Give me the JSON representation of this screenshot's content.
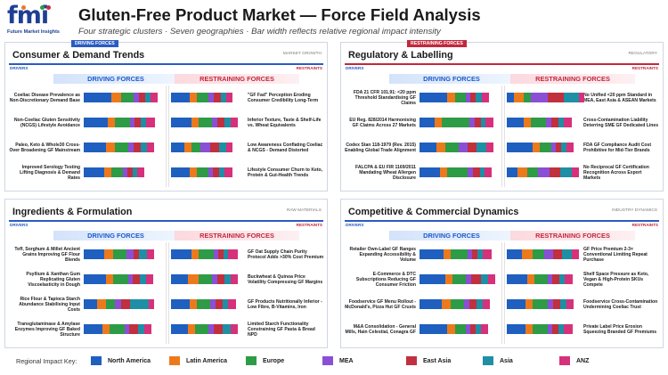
{
  "logo": {
    "mark": "fmi",
    "sub": "Future Market Insights"
  },
  "title": "Gluten-Free Product Market — Force Field Analysis",
  "subtitle": "Four strategic clusters · Seven geographies · Bar width reflects relative regional impact intensity",
  "colors": {
    "North America": "#1f5fbf",
    "Latin America": "#ec7a1c",
    "Europe": "#2e9b46",
    "MEA": "#8b4fd6",
    "East Asia": "#c0303f",
    "Asia": "#1f8fa6",
    "ANZ": "#d6317a",
    "driving_accent": "#2a5bc2",
    "restraining_accent": "#c2283c"
  },
  "legend": {
    "title": "Regional Impact Key:",
    "items": [
      "North America",
      "Latin America",
      "Europe",
      "MEA",
      "East Asia",
      "Asia",
      "ANZ"
    ]
  },
  "panels": [
    {
      "title": "Consumer & Demand Trends",
      "tag": "DRIVING FORCES",
      "caption": "MARKET GROWTH",
      "drivers_label": "DRIVERS",
      "restraints_label": "RESTRAINTS",
      "driving_header": "DRIVING FORCES",
      "restraining_header": "RESTRAINING FORCES"
    },
    {
      "title": "Regulatory & Labelling",
      "tag": "RESTRAINING FORCES",
      "caption": "REGULATORY",
      "drivers_label": "DRIVERS",
      "restraints_label": "RESTRAINTS",
      "driving_header": "DRIVING FORCES",
      "restraining_header": "RESTRAINING FORCES"
    },
    {
      "title": "Ingredients & Formulation",
      "tag": "",
      "caption": "RAW MATERIALS",
      "drivers_label": "DRIVERS",
      "restraints_label": "RESTRAINTS",
      "driving_header": "DRIVING FORCES",
      "restraining_header": "RESTRAINING FORCES"
    },
    {
      "title": "Competitive & Commercial Dynamics",
      "tag": "",
      "caption": "INDUSTRY DYNAMICS",
      "drivers_label": "DRIVERS",
      "restraints_label": "RESTRAINTS",
      "driving_header": "DRIVING FORCES",
      "restraining_header": "RESTRAINING FORCES"
    }
  ],
  "chart_data": {
    "type": "bar",
    "stacked": true,
    "series_order": [
      "North America",
      "Latin America",
      "Europe",
      "MEA",
      "East Asia",
      "Asia",
      "ANZ"
    ],
    "panels": [
      {
        "name": "Consumer & Demand Trends",
        "driving": [
          {
            "label": "Coeliac Disease Prevalence as Non-Discretionary Demand Base",
            "values": [
              30,
              10,
              14,
              6,
              6,
              6,
              8
            ]
          },
          {
            "label": "Non-Coeliac Gluten Sensitivity (NCGS) Lifestyle Avoidance",
            "values": [
              26,
              8,
              16,
              5,
              7,
              5,
              10
            ]
          },
          {
            "label": "Paleo, Keto & Whole30 Cross-Over Broadening GF Mainstream",
            "values": [
              24,
              10,
              14,
              6,
              8,
              6,
              8
            ]
          },
          {
            "label": "Improved Serology Testing Lifting Diagnosis & Demand Rates",
            "values": [
              22,
              8,
              12,
              5,
              6,
              5,
              7
            ]
          }
        ],
        "restraining": [
          {
            "label": "\"GF Fad\" Perception Eroding Consumer Credibility Long-Term",
            "values": [
              20,
              8,
              12,
              6,
              8,
              6,
              6
            ]
          },
          {
            "label": "Inferior Texture, Taste & Shelf-Life vs. Wheat Equivalents",
            "values": [
              22,
              8,
              14,
              6,
              8,
              6,
              8
            ]
          },
          {
            "label": "Low Awareness Conflating Coeliac & NCGS - Demand Distorted",
            "values": [
              14,
              8,
              10,
              10,
              10,
              8,
              6
            ]
          },
          {
            "label": "Lifestyle Consumer Churn to Keto, Protein & Gut-Health Trends",
            "values": [
              20,
              8,
              12,
              5,
              7,
              6,
              8
            ]
          }
        ]
      },
      {
        "name": "Regulatory & Labelling",
        "driving": [
          {
            "label": "FDA 21 CFR 101.91: <20 ppm Threshold Standardising GF Claims",
            "values": [
              30,
              8,
              12,
              5,
              6,
              6,
              8
            ]
          },
          {
            "label": "EU Reg. 828/2014 Harmonising GF Claims Across 27 Markets",
            "values": [
              16,
              8,
              30,
              6,
              6,
              5,
              9
            ]
          },
          {
            "label": "Codex Stan 118-1979 (Rev. 2015) Enabling Global Trade Alignment",
            "values": [
              18,
              10,
              14,
              10,
              10,
              10,
              8
            ]
          },
          {
            "label": "FALCPA & EU FIR 1169/2011 Mandating Wheat Allergen Disclosure",
            "values": [
              22,
              8,
              22,
              6,
              7,
              5,
              8
            ]
          }
        ],
        "restraining": [
          {
            "label": "No Unified <20 ppm Standard in MEA, East Asia & ASEAN Markets",
            "values": [
              8,
              10,
              8,
              18,
              18,
              16,
              6
            ]
          },
          {
            "label": "Cross-Contamination Liability Deterring SME GF Dedicated Lines",
            "values": [
              18,
              8,
              16,
              6,
              8,
              6,
              8
            ]
          },
          {
            "label": "FDA GF Compliance Audit Cost Prohibitive for Mid-Tier Brands",
            "values": [
              28,
              8,
              12,
              5,
              6,
              5,
              8
            ]
          },
          {
            "label": "No Reciprocal GF Certification Recognition Across Export Markets",
            "values": [
              12,
              10,
              12,
              12,
              12,
              12,
              8
            ]
          }
        ]
      },
      {
        "name": "Ingredients & Formulation",
        "driving": [
          {
            "label": "Teff, Sorghum & Millet Ancient Grains Improving GF Flour Blends",
            "values": [
              22,
              10,
              14,
              8,
              6,
              8,
              8
            ]
          },
          {
            "label": "Psyllium & Xanthan Gum Replicating Gluten Viscoelasticity in Dough",
            "values": [
              24,
              8,
              16,
              5,
              8,
              6,
              8
            ]
          },
          {
            "label": "Rice Flour & Tapioca Starch Abundance Stabilising Input Costs",
            "values": [
              14,
              10,
              10,
              6,
              10,
              20,
              6
            ]
          },
          {
            "label": "Transglutaminase & Amylase Enzymes Improving GF Baked Structure",
            "values": [
              20,
              8,
              16,
              5,
              10,
              6,
              8
            ]
          }
        ],
        "restraining": [
          {
            "label": "GF Oat Supply Chain Purity Protocol Adds >30% Cost Premium",
            "values": [
              22,
              8,
              16,
              5,
              6,
              5,
              10
            ]
          },
          {
            "label": "Buckwheat & Quinoa Price Volatility Compressing GF Margins",
            "values": [
              18,
              12,
              14,
              6,
              8,
              6,
              8
            ]
          },
          {
            "label": "GF Products Nutritionally Inferior - Low Fibre, B-Vitamins, Iron",
            "values": [
              20,
              8,
              14,
              6,
              8,
              6,
              8
            ]
          },
          {
            "label": "Limited Starch Functionality Constraining GF Pasta & Bread NPD",
            "values": [
              18,
              8,
              14,
              6,
              10,
              8,
              8
            ]
          }
        ]
      },
      {
        "name": "Competitive & Commercial Dynamics",
        "driving": [
          {
            "label": "Retailer Own-Label GF Ranges Expanding Accessibility & Volume",
            "values": [
              26,
              8,
              18,
              5,
              6,
              5,
              10
            ]
          },
          {
            "label": "E-Commerce & DTC Subscriptions Reducing GF Consumer Friction",
            "values": [
              28,
              8,
              14,
              6,
              10,
              8,
              8
            ]
          },
          {
            "label": "Foodservice GF Menu Rollout - McDonald's, Pizza Hut GF Crusts",
            "values": [
              24,
              10,
              14,
              6,
              8,
              6,
              8
            ]
          },
          {
            "label": "M&A Consolidation - General Mills, Hain Celestial, Conagra GF",
            "values": [
              30,
              8,
              12,
              5,
              6,
              5,
              8
            ]
          }
        ],
        "restraining": [
          {
            "label": "GF Price Premium 2-3× Conventional Limiting Repeat Purchase",
            "values": [
              16,
              12,
              12,
              10,
              10,
              10,
              8
            ]
          },
          {
            "label": "Shelf Space Pressure as Keto, Vegan & High-Protein SKUs Compete",
            "values": [
              22,
              8,
              14,
              5,
              8,
              6,
              8
            ]
          },
          {
            "label": "Foodservice Cross-Contamination Undermining Coeliac Trust",
            "values": [
              20,
              8,
              16,
              6,
              8,
              6,
              8
            ]
          },
          {
            "label": "Private Label Price Erosion Squeezing Branded GF Premiums",
            "values": [
              20,
              8,
              16,
              5,
              7,
              6,
              9
            ]
          }
        ]
      }
    ]
  }
}
